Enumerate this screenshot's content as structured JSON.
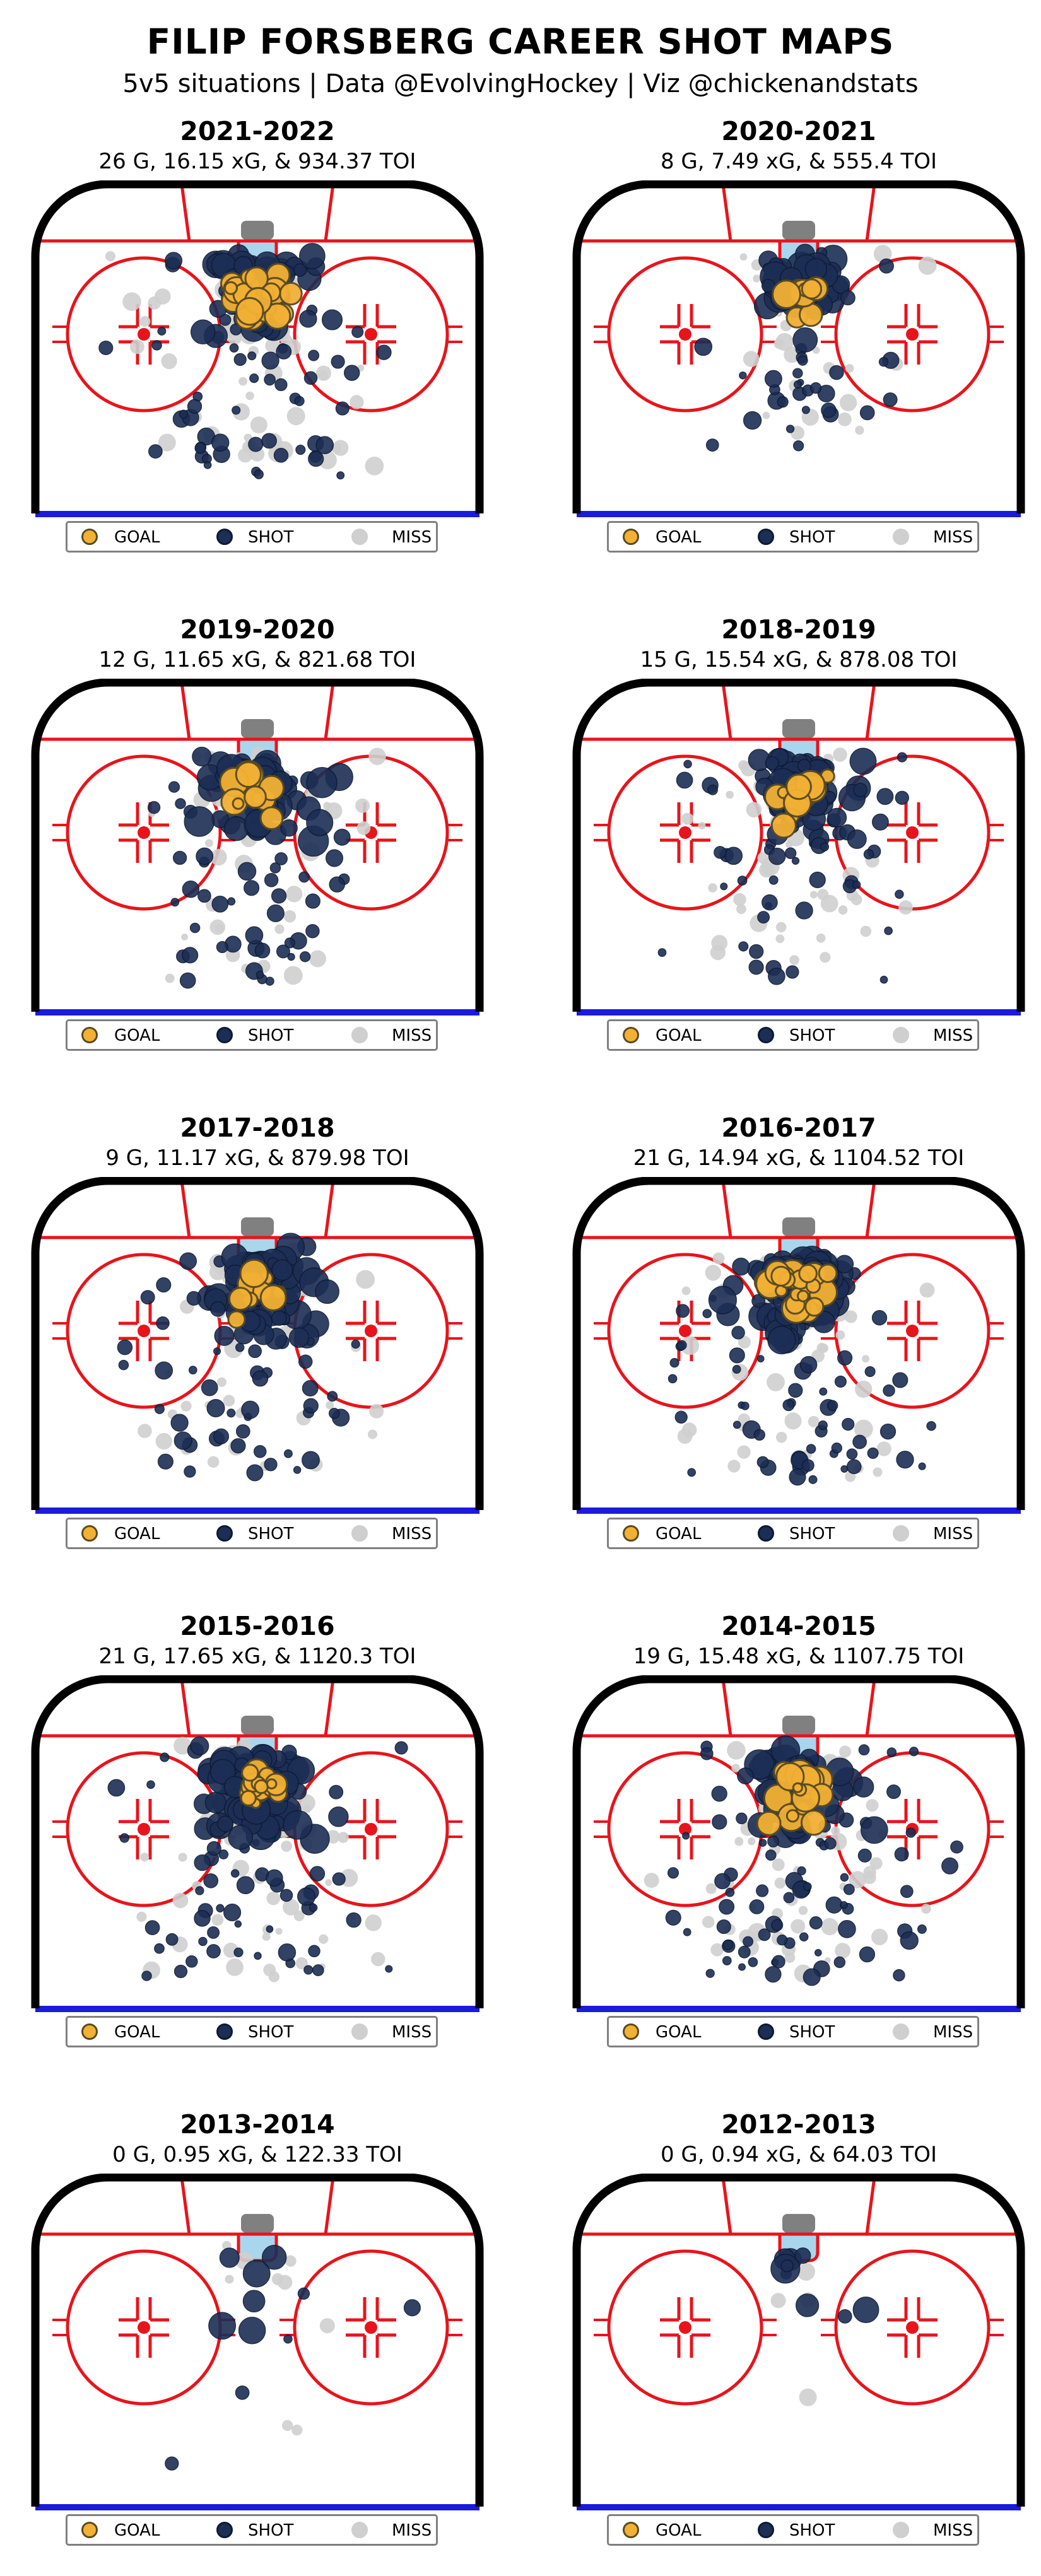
{
  "figure": {
    "title": "FILIP FORSBERG CAREER SHOT MAPS",
    "subtitle": "5v5 situations | Data @EvolvingHockey | Viz @chickenandstats"
  },
  "legend": {
    "goal": "GOAL",
    "shot": "SHOT",
    "miss": "MISS"
  },
  "colors": {
    "goal_fill": "#f2b134",
    "goal_edge": "#5a4a20",
    "shot_fill": "#1c2e55",
    "shot_edge": "#0d1a33",
    "miss_fill": "#cfcfcf",
    "rink_line": "#e8141b",
    "boards": "#000000",
    "blue_line": "#1b1bdc",
    "crease": "#a9d6ec",
    "net": "#808080"
  },
  "chart_data": [
    {
      "type": "scatter",
      "title": "2021-2022",
      "subtitle": "26 G, 16.15 xG, & 934.37 TOI",
      "goals": 26,
      "xg": 16.15,
      "toi": 934.37,
      "series": [
        {
          "name": "GOAL"
        },
        {
          "name": "SHOT"
        },
        {
          "name": "MISS"
        }
      ],
      "approx_shots": 130,
      "approx_misses": 75,
      "spread": 1.0
    },
    {
      "type": "scatter",
      "title": "2020-2021",
      "subtitle": "8 G, 7.49 xG, & 555.4 TOI",
      "goals": 8,
      "xg": 7.49,
      "toi": 555.4,
      "series": [
        {
          "name": "GOAL"
        },
        {
          "name": "SHOT"
        },
        {
          "name": "MISS"
        }
      ],
      "approx_shots": 80,
      "approx_misses": 50,
      "spread": 0.85
    },
    {
      "type": "scatter",
      "title": "2019-2020",
      "subtitle": "12 G, 11.65 xG, & 821.68 TOI",
      "goals": 12,
      "xg": 11.65,
      "toi": 821.68,
      "series": [
        {
          "name": "GOAL"
        },
        {
          "name": "SHOT"
        },
        {
          "name": "MISS"
        }
      ],
      "approx_shots": 115,
      "approx_misses": 65,
      "spread": 1.0
    },
    {
      "type": "scatter",
      "title": "2018-2019",
      "subtitle": "15 G, 15.54 xG, & 878.08 TOI",
      "goals": 15,
      "xg": 15.54,
      "toi": 878.08,
      "series": [
        {
          "name": "GOAL"
        },
        {
          "name": "SHOT"
        },
        {
          "name": "MISS"
        }
      ],
      "approx_shots": 120,
      "approx_misses": 70,
      "spread": 1.0
    },
    {
      "type": "scatter",
      "title": "2017-2018",
      "subtitle": "9 G, 11.17 xG, & 879.98 TOI",
      "goals": 9,
      "xg": 11.17,
      "toi": 879.98,
      "series": [
        {
          "name": "GOAL"
        },
        {
          "name": "SHOT"
        },
        {
          "name": "MISS"
        }
      ],
      "approx_shots": 125,
      "approx_misses": 70,
      "spread": 1.0
    },
    {
      "type": "scatter",
      "title": "2016-2017",
      "subtitle": "21 G, 14.94 xG, & 1104.52 TOI",
      "goals": 21,
      "xg": 14.94,
      "toi": 1104.52,
      "series": [
        {
          "name": "GOAL"
        },
        {
          "name": "SHOT"
        },
        {
          "name": "MISS"
        }
      ],
      "approx_shots": 150,
      "approx_misses": 85,
      "spread": 1.0
    },
    {
      "type": "scatter",
      "title": "2015-2016",
      "subtitle": "21 G, 17.65 xG, & 1120.3 TOI",
      "goals": 21,
      "xg": 17.65,
      "toi": 1120.3,
      "series": [
        {
          "name": "GOAL"
        },
        {
          "name": "SHOT"
        },
        {
          "name": "MISS"
        }
      ],
      "approx_shots": 150,
      "approx_misses": 90,
      "spread": 1.0
    },
    {
      "type": "scatter",
      "title": "2014-2015",
      "subtitle": "19 G, 15.48 xG, & 1107.75 TOI",
      "goals": 19,
      "xg": 15.48,
      "toi": 1107.75,
      "series": [
        {
          "name": "GOAL"
        },
        {
          "name": "SHOT"
        },
        {
          "name": "MISS"
        }
      ],
      "approx_shots": 155,
      "approx_misses": 90,
      "spread": 1.0
    },
    {
      "type": "scatter",
      "title": "2013-2014",
      "subtitle": "0 G, 0.95 xG, & 122.33 TOI",
      "goals": 0,
      "xg": 0.95,
      "toi": 122.33,
      "series": [
        {
          "name": "GOAL"
        },
        {
          "name": "SHOT"
        },
        {
          "name": "MISS"
        }
      ],
      "approx_shots": 11,
      "approx_misses": 9,
      "spread": 1.0
    },
    {
      "type": "scatter",
      "title": "2012-2013",
      "subtitle": "0 G, 0.94 xG, & 64.03 TOI",
      "goals": 0,
      "xg": 0.94,
      "toi": 64.03,
      "series": [
        {
          "name": "GOAL"
        },
        {
          "name": "SHOT"
        },
        {
          "name": "MISS"
        }
      ],
      "approx_shots": 9,
      "approx_misses": 4,
      "spread": 0.7
    }
  ]
}
